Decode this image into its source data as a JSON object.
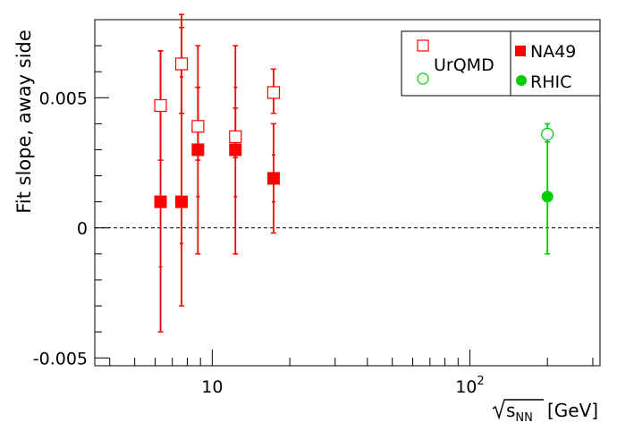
{
  "chart_data": {
    "type": "scatter",
    "ylabel": "Fit slope, away side",
    "xlabel": {
      "prefix": "s",
      "subscript": "NN",
      "unit": "[GeV]"
    },
    "x_scale": "log",
    "xlim": [
      3.5,
      320
    ],
    "ylim": [
      -0.0053,
      0.008
    ],
    "y_ticks": [
      -0.005,
      0,
      0.005
    ],
    "y_tick_labels": [
      "-0.005",
      "0",
      "0.005"
    ],
    "x_tick_labels": [
      {
        "value": 10,
        "base": "10",
        "exp": ""
      },
      {
        "value": 100,
        "base": "10",
        "exp": "2"
      }
    ],
    "reference_line": 0,
    "legend": {
      "placement": "top-right",
      "entries": [
        {
          "label": "UrQMD",
          "markers": [
            "open-square-red",
            "open-circle-green"
          ]
        },
        {
          "label": "NA49",
          "markers": [
            "filled-square-red"
          ]
        },
        {
          "label": "RHIC",
          "markers": [
            "filled-circle-green"
          ]
        }
      ]
    },
    "colors": {
      "na49": "#ff0000",
      "rhic": "#00cc00"
    },
    "series": [
      {
        "name": "NA49",
        "marker": "filled-square",
        "color": "#ff0000",
        "points": [
          {
            "x": 6.3,
            "y": 0.001,
            "ylo": -0.004,
            "yhi": 0.0068,
            "inner_lo": -0.0015,
            "inner_hi": 0.0045
          },
          {
            "x": 7.6,
            "y": 0.001,
            "ylo": -0.003,
            "yhi": 0.0077,
            "inner_lo": -0.0006,
            "inner_hi": 0.0058
          },
          {
            "x": 8.8,
            "y": 0.003,
            "ylo": -0.001,
            "yhi": 0.007,
            "inner_lo": 0.0012,
            "inner_hi": 0.0054
          },
          {
            "x": 12.3,
            "y": 0.003,
            "ylo": -0.001,
            "yhi": 0.007,
            "inner_lo": 0.0012,
            "inner_hi": 0.0054
          },
          {
            "x": 17.3,
            "y": 0.0019,
            "ylo": -0.0002,
            "yhi": 0.004,
            "inner_lo": 0.001,
            "inner_hi": 0.0028
          }
        ]
      },
      {
        "name": "UrQMD",
        "marker": "open-square",
        "color": "#ff0000",
        "points": [
          {
            "x": 6.3,
            "y": 0.0047,
            "ylo": 0.0026,
            "yhi": 0.0068
          },
          {
            "x": 7.6,
            "y": 0.0063,
            "ylo": 0.0044,
            "yhi": 0.0082
          },
          {
            "x": 8.8,
            "y": 0.0039,
            "ylo": 0.0026,
            "yhi": 0.0054
          },
          {
            "x": 12.3,
            "y": 0.0035,
            "ylo": 0.0027,
            "yhi": 0.0046
          },
          {
            "x": 17.3,
            "y": 0.0052,
            "ylo": 0.0044,
            "yhi": 0.0061
          }
        ]
      },
      {
        "name": "RHIC",
        "marker": "filled-circle",
        "color": "#00cc00",
        "points": [
          {
            "x": 200,
            "y": 0.0012,
            "ylo": -0.001,
            "yhi": 0.0038
          }
        ]
      },
      {
        "name": "UrQMD",
        "marker": "open-circle",
        "color": "#00cc00",
        "points": [
          {
            "x": 200,
            "y": 0.0036,
            "ylo": 0.0033,
            "yhi": 0.004
          }
        ]
      }
    ]
  }
}
